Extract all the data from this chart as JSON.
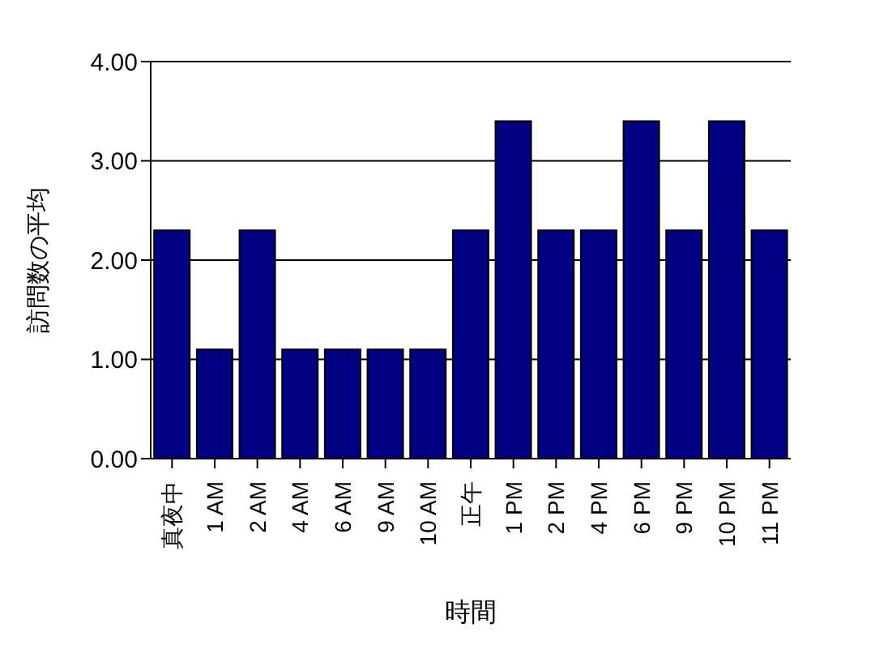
{
  "chart_data": {
    "type": "bar",
    "xlabel": "時間",
    "ylabel": "訪問数の平均",
    "categories": [
      "真夜中",
      "1 AM",
      "2 AM",
      "4 AM",
      "6 AM",
      "9 AM",
      "10 AM",
      "正午",
      "1 PM",
      "2 PM",
      "4 PM",
      "6 PM",
      "9 PM",
      "10 PM",
      "11 PM"
    ],
    "values": [
      2.3,
      1.1,
      2.3,
      1.1,
      1.1,
      1.1,
      1.1,
      2.3,
      3.4,
      2.3,
      2.3,
      3.4,
      2.3,
      3.4,
      2.3
    ],
    "color": "#000080",
    "ylim": [
      0,
      4
    ],
    "yticks": [
      {
        "value": 0,
        "label": "0.00"
      },
      {
        "value": 1,
        "label": "1.00"
      },
      {
        "value": 2,
        "label": "2.00"
      },
      {
        "value": 3,
        "label": "3.00"
      },
      {
        "value": 4,
        "label": "4.00"
      }
    ],
    "grid": "y"
  }
}
